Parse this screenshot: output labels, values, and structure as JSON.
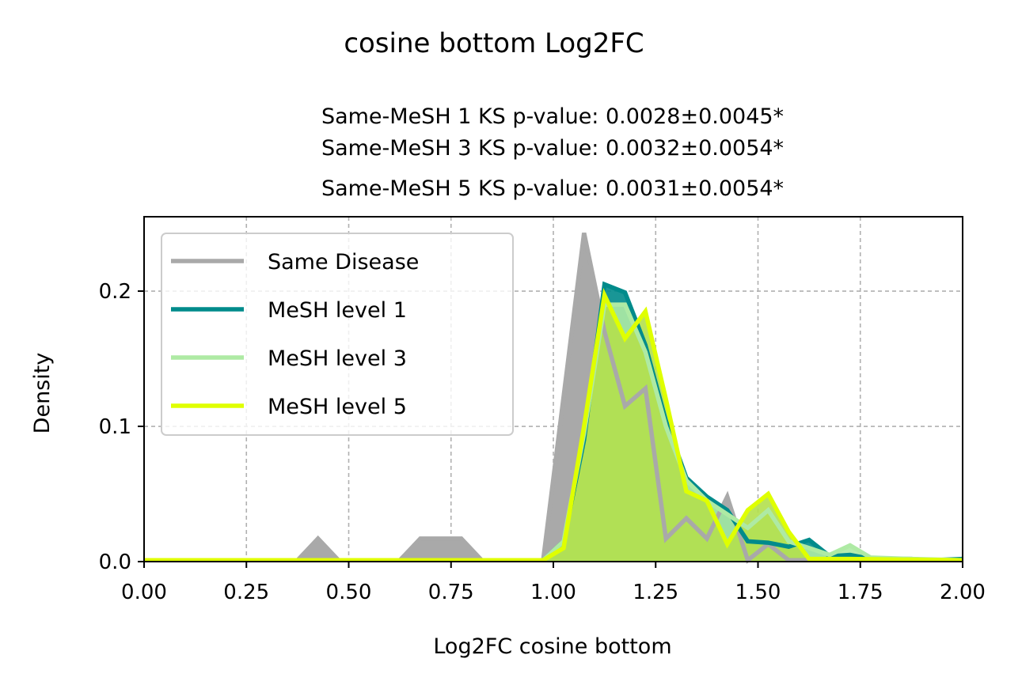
{
  "figure": {
    "suptitle": "cosine bottom Log2FC",
    "subtitle_lines": [
      "Same-MeSH 1 KS p-value: 0.0028±0.0045*",
      "Same-MeSH 3 KS p-value: 0.0032±0.0054*",
      "Same-MeSH 5 KS p-value: 0.0031±0.0054*"
    ]
  },
  "chart_data": {
    "type": "area",
    "xlabel": "Log2FC cosine bottom",
    "ylabel": "Density",
    "xlim": [
      0.0,
      2.0
    ],
    "ylim": [
      0.0,
      0.255
    ],
    "xticks": [
      0.0,
      0.25,
      0.5,
      0.75,
      1.0,
      1.25,
      1.5,
      1.75,
      2.0
    ],
    "xtick_labels": [
      "0.00",
      "0.25",
      "0.50",
      "0.75",
      "1.00",
      "1.25",
      "1.50",
      "1.75",
      "2.00"
    ],
    "yticks": [
      0.0,
      0.1,
      0.2
    ],
    "ytick_labels": [
      "0.0",
      "0.1",
      "0.2"
    ],
    "grid": true,
    "legend_position": "top-left",
    "series": [
      {
        "name": "Same Disease",
        "color": "#a9a9a9",
        "fill": "#a9a9a9",
        "points": [
          [
            0.0,
            0.001
          ],
          [
            0.375,
            0.001
          ],
          [
            0.425,
            0.017
          ],
          [
            0.475,
            0.001
          ],
          [
            0.625,
            0.001
          ],
          [
            0.675,
            0.017
          ],
          [
            0.775,
            0.017
          ],
          [
            0.825,
            0.001
          ],
          [
            0.975,
            0.001
          ],
          [
            1.075,
            0.243
          ],
          [
            1.125,
            0.17
          ],
          [
            1.175,
            0.115
          ],
          [
            1.225,
            0.128
          ],
          [
            1.275,
            0.017
          ],
          [
            1.325,
            0.032
          ],
          [
            1.375,
            0.017
          ],
          [
            1.425,
            0.048
          ],
          [
            1.475,
            0.001
          ],
          [
            1.525,
            0.013
          ],
          [
            1.575,
            0.001
          ],
          [
            2.0,
            0.001
          ]
        ]
      },
      {
        "name": "MeSH level 1",
        "color": "#008b8b",
        "fill": "#008b8b",
        "points": [
          [
            0.0,
            0.001
          ],
          [
            0.975,
            0.001
          ],
          [
            1.025,
            0.015
          ],
          [
            1.075,
            0.09
          ],
          [
            1.125,
            0.205
          ],
          [
            1.175,
            0.199
          ],
          [
            1.225,
            0.16
          ],
          [
            1.275,
            0.104
          ],
          [
            1.325,
            0.062
          ],
          [
            1.375,
            0.048
          ],
          [
            1.425,
            0.038
          ],
          [
            1.475,
            0.015
          ],
          [
            1.525,
            0.014
          ],
          [
            1.575,
            0.011
          ],
          [
            1.625,
            0.016
          ],
          [
            1.675,
            0.004
          ],
          [
            1.725,
            0.005
          ],
          [
            1.775,
            0.002
          ],
          [
            1.875,
            0.002
          ],
          [
            1.925,
            0.001
          ],
          [
            2.0,
            0.002
          ]
        ]
      },
      {
        "name": "MeSH level 3",
        "color": "#aeeaa4",
        "fill": "#aeeaa4",
        "points": [
          [
            0.0,
            0.001
          ],
          [
            0.975,
            0.001
          ],
          [
            1.025,
            0.015
          ],
          [
            1.075,
            0.095
          ],
          [
            1.125,
            0.19
          ],
          [
            1.175,
            0.19
          ],
          [
            1.225,
            0.155
          ],
          [
            1.275,
            0.1
          ],
          [
            1.325,
            0.06
          ],
          [
            1.375,
            0.045
          ],
          [
            1.425,
            0.035
          ],
          [
            1.475,
            0.025
          ],
          [
            1.525,
            0.038
          ],
          [
            1.575,
            0.015
          ],
          [
            1.625,
            0.01
          ],
          [
            1.675,
            0.005
          ],
          [
            1.725,
            0.012
          ],
          [
            1.775,
            0.003
          ],
          [
            1.875,
            0.002
          ],
          [
            2.0,
            0.001
          ]
        ]
      },
      {
        "name": "MeSH level 5",
        "color": "#dfff00",
        "fill": "#b2e04c",
        "points": [
          [
            0.0,
            0.001
          ],
          [
            0.975,
            0.001
          ],
          [
            1.025,
            0.01
          ],
          [
            1.075,
            0.1
          ],
          [
            1.125,
            0.197
          ],
          [
            1.175,
            0.165
          ],
          [
            1.225,
            0.185
          ],
          [
            1.275,
            0.12
          ],
          [
            1.325,
            0.052
          ],
          [
            1.375,
            0.045
          ],
          [
            1.425,
            0.013
          ],
          [
            1.475,
            0.038
          ],
          [
            1.525,
            0.05
          ],
          [
            1.575,
            0.022
          ],
          [
            1.625,
            0.002
          ],
          [
            1.725,
            0.002
          ],
          [
            2.0,
            0.001
          ]
        ]
      }
    ]
  }
}
